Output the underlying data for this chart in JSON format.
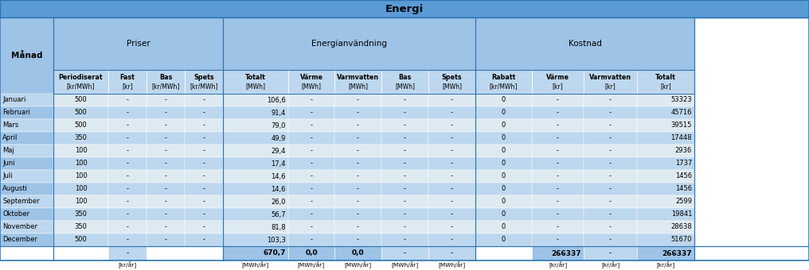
{
  "title": "Energi",
  "months": [
    "Januari",
    "Februari",
    "Mars",
    "April",
    "Maj",
    "Juni",
    "Juli",
    "Augusti",
    "September",
    "Oktober",
    "November",
    "December"
  ],
  "priser_periodiserat": [
    "500",
    "500",
    "500",
    "350",
    "100",
    "100",
    "100",
    "100",
    "100",
    "350",
    "350",
    "500"
  ],
  "priser_fast": [
    "-",
    "-",
    "-",
    "-",
    "-",
    "-",
    "-",
    "-",
    "-",
    "-",
    "-",
    "-"
  ],
  "priser_bas": [
    "-",
    "-",
    "-",
    "-",
    "-",
    "-",
    "-",
    "-",
    "-",
    "-",
    "-",
    "-"
  ],
  "priser_spets": [
    "-",
    "-",
    "-",
    "-",
    "-",
    "-",
    "-",
    "-",
    "-",
    "-",
    "-",
    "-"
  ],
  "energi_totalt": [
    "106,6",
    "91,4",
    "79,0",
    "49,9",
    "29,4",
    "17,4",
    "14,6",
    "14,6",
    "26,0",
    "56,7",
    "81,8",
    "103,3"
  ],
  "energi_varme": [
    "-",
    "-",
    "-",
    "-",
    "-",
    "-",
    "-",
    "-",
    "-",
    "-",
    "-",
    "-"
  ],
  "energi_varmvatten": [
    "-",
    "-",
    "-",
    "-",
    "-",
    "-",
    "-",
    "-",
    "-",
    "-",
    "-",
    "-"
  ],
  "energi_bas": [
    "-",
    "-",
    "-",
    "-",
    "-",
    "-",
    "-",
    "-",
    "-",
    "-",
    "-",
    "-"
  ],
  "energi_spets": [
    "-",
    "-",
    "-",
    "-",
    "-",
    "-",
    "-",
    "-",
    "-",
    "-",
    "-",
    "-"
  ],
  "kostnad_rabatt": [
    "0",
    "0",
    "0",
    "0",
    "0",
    "0",
    "0",
    "0",
    "0",
    "0",
    "0",
    "0"
  ],
  "kostnad_varme": [
    "-",
    "-",
    "-",
    "-",
    "-",
    "-",
    "-",
    "-",
    "-",
    "-",
    "-",
    "-"
  ],
  "kostnad_varmvatten": [
    "-",
    "-",
    "-",
    "-",
    "-",
    "-",
    "-",
    "-",
    "-",
    "-",
    "-",
    "-"
  ],
  "kostnad_totalt": [
    "53323",
    "45716",
    "39515",
    "17448",
    "2936",
    "1737",
    "1456",
    "1456",
    "2599",
    "19841",
    "28638",
    "51670"
  ],
  "sum_fast": "-",
  "sum_totalt_mwh": "670,7",
  "sum_varme_mwh": "0,0",
  "sum_varmvatten_mwh": "0,0",
  "sum_bas_mwh": "-",
  "sum_spets_mwh": "-",
  "sum_varme_kr": "266337",
  "sum_varmvatten_kr": "-",
  "sum_totalt_kr": "266337",
  "color_title_bg": "#5b9bd5",
  "color_group_bg": "#9dc3e6",
  "color_sub_bg": "#bdd7ee",
  "color_row_light": "#deeaf1",
  "color_row_dark": "#bdd7ee",
  "color_manad_col": "#9dc3e6",
  "color_sum_highlight": "#9dc3e6",
  "color_border_dark": "#2e75b6",
  "color_border_light": "#ffffff"
}
